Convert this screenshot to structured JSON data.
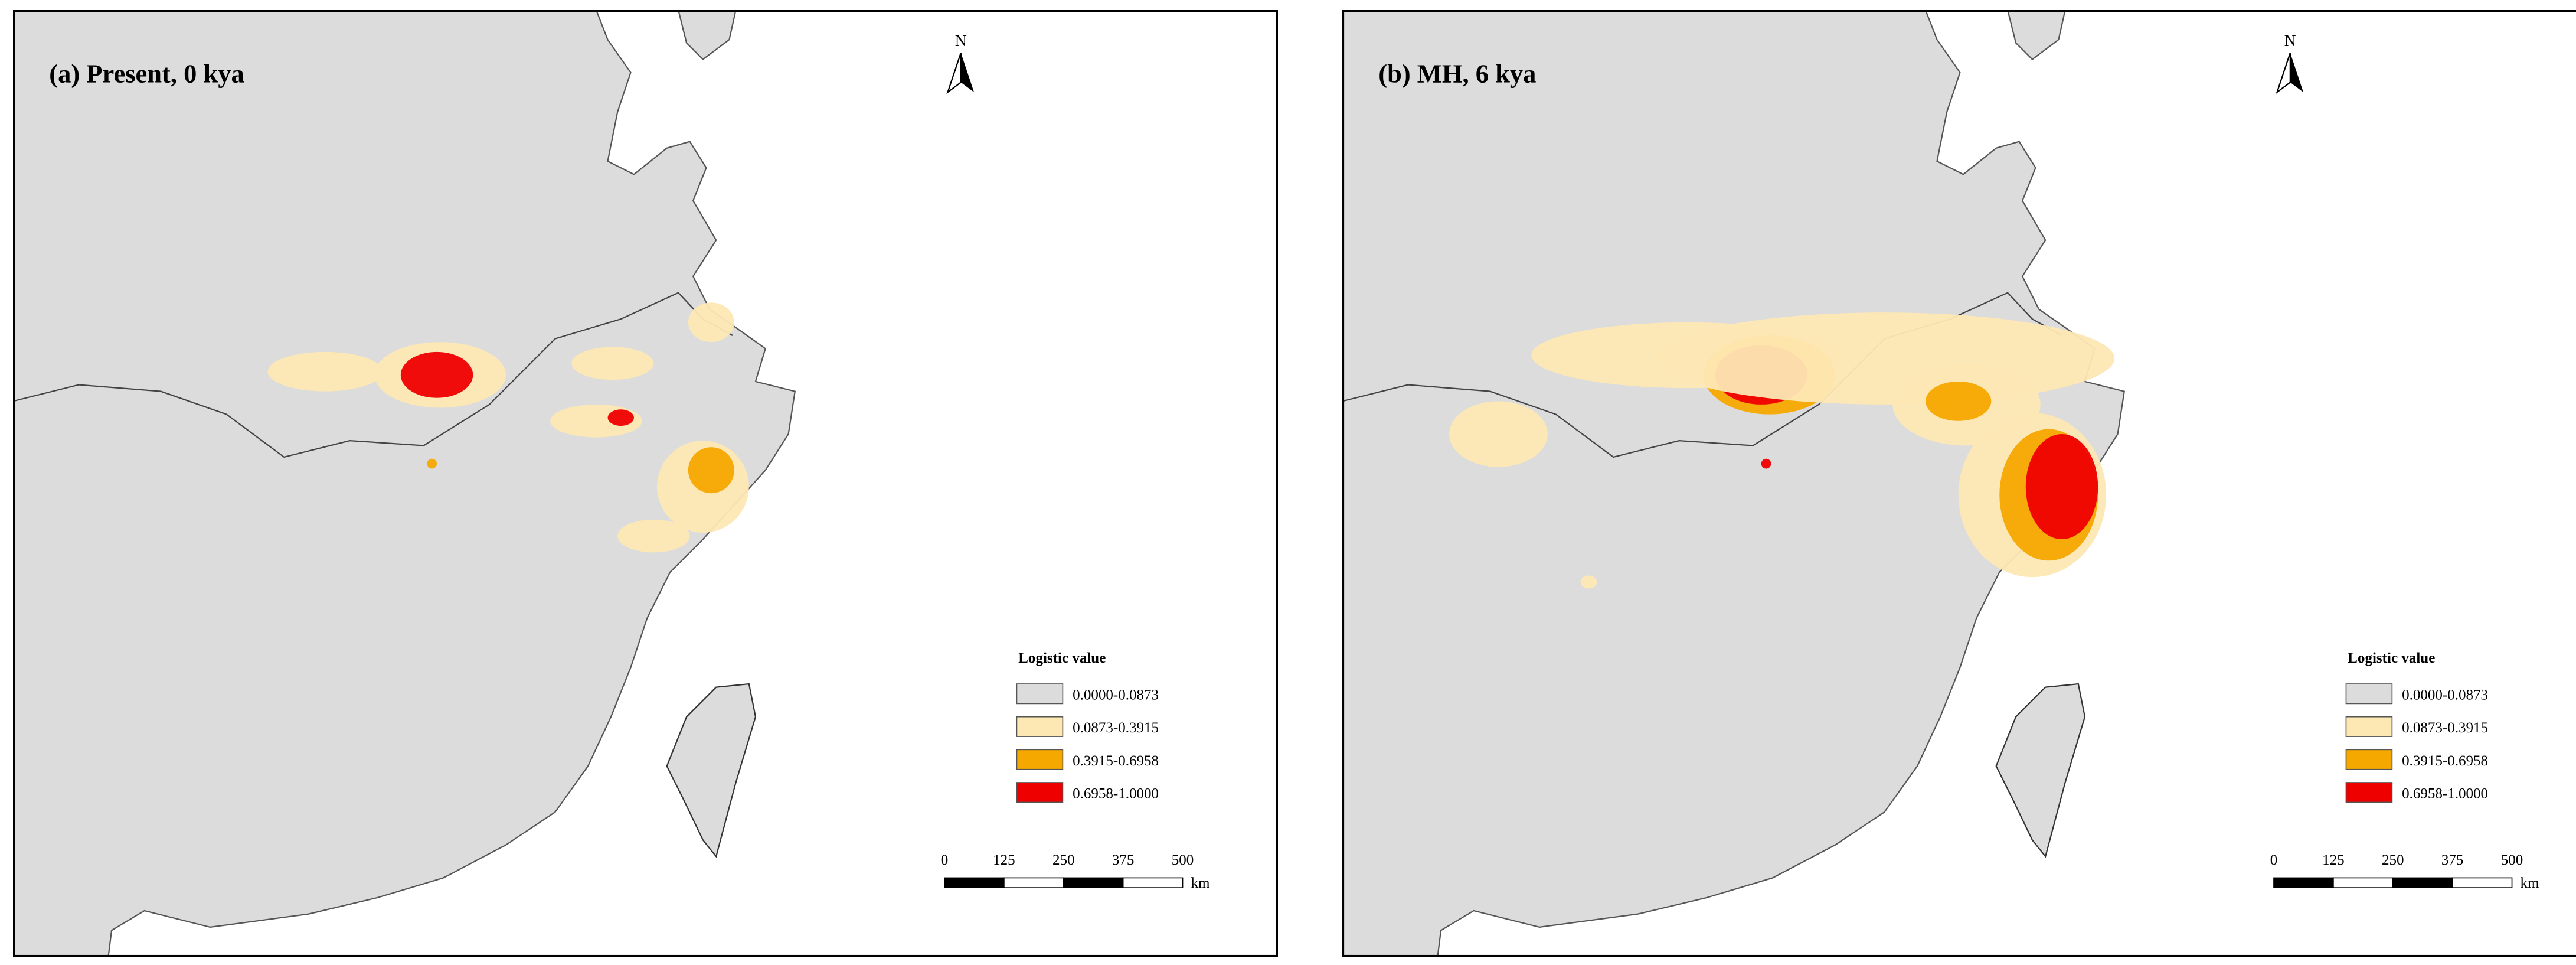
{
  "panels": [
    {
      "title": "(a) Present, 0 kya",
      "north": "N",
      "legend": {
        "title": "Logistic value",
        "items": [
          {
            "label": "0.0000-0.0873",
            "color": "#dcdcdc"
          },
          {
            "label": "0.0873-0.3915",
            "color": "#fde8b4"
          },
          {
            "label": "0.3915-0.6958",
            "color": "#f5a800"
          },
          {
            "label": "0.6958-1.0000",
            "color": "#ee0000"
          }
        ]
      },
      "scale_bar": {
        "ticks": [
          0,
          125,
          250,
          375,
          500
        ],
        "unit": "km"
      }
    },
    {
      "title": "(b) MH, 6 kya",
      "north": "N",
      "legend": {
        "title": "Logistic value",
        "items": [
          {
            "label": "0.0000-0.0873",
            "color": "#dcdcdc"
          },
          {
            "label": "0.0873-0.3915",
            "color": "#fde8b4"
          },
          {
            "label": "0.3915-0.6958",
            "color": "#f5a800"
          },
          {
            "label": "0.6958-1.0000",
            "color": "#ee0000"
          }
        ]
      },
      "scale_bar": {
        "ticks": [
          0,
          125,
          250,
          375,
          500
        ],
        "unit": "km"
      }
    }
  ]
}
